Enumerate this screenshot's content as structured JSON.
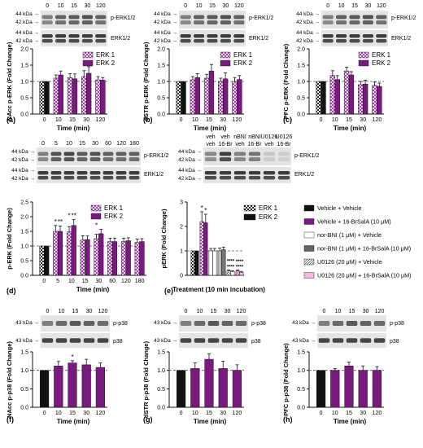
{
  "colors": {
    "erk1": "#f0d6f2",
    "erk2": "#7a1a7e",
    "black": "#111111",
    "blot_dark": "#2a2a2a",
    "blot_bg": "#e4e4e4",
    "dashed": "#555555"
  },
  "blot_labels": {
    "perk": "p-ERK1/2",
    "erk": "ERK1/2",
    "pp38": "p-p38",
    "p38": "p38",
    "kda44": "44 kDa",
    "kda42": "42 kDa",
    "kda43": "43 kDa"
  },
  "lane_labels": {
    "tc5": [
      "0",
      "10",
      "15",
      "30",
      "120"
    ],
    "tc8": [
      "0",
      "5",
      "10",
      "15",
      "30",
      "60",
      "120",
      "180"
    ],
    "trt_line1": [
      "veh",
      "veh",
      "nBNI",
      "nBNI",
      "U0126",
      "U0126"
    ],
    "trt_line2": [
      "veh",
      "16-Br",
      "veh",
      "16-Br",
      "veh",
      "16-Br"
    ]
  },
  "legend_erk": [
    "ERK 1",
    "ERK 2"
  ],
  "legend_e": [
    "Vehicle + Vehicle",
    "Vehicle + 16-BrSalA (10 μM)",
    "nor-BNI (1 μM) + Vehicle",
    "nor-BNI (1 μM) + 16-BrSalA (10 μM)",
    "U0126 (20 μM) + Vehicle",
    "U0126 (20 μM) + 16-BrSalA (10 μM)"
  ],
  "chart_data": [
    {
      "id": "a",
      "panel_label": "(a)",
      "type": "bar",
      "categories": [
        "0",
        "10",
        "15",
        "30",
        "120"
      ],
      "ylabel": "NAcc p-ERK (Fold Change)",
      "xlabel": "Time (min)",
      "ylim": [
        0,
        2.0
      ],
      "yticks": [
        "0.0",
        "0.5",
        "1.0",
        "1.5",
        "2.0"
      ],
      "series": [
        {
          "name": "ERK 1",
          "values": [
            1.0,
            1.1,
            1.12,
            1.15,
            1.05
          ],
          "errors": [
            0,
            0.1,
            0.12,
            0.18,
            0.1
          ]
        },
        {
          "name": "ERK 2",
          "values": [
            1.0,
            1.2,
            1.08,
            1.25,
            1.04
          ],
          "errors": [
            0,
            0.12,
            0.15,
            0.2,
            0.08
          ]
        }
      ]
    },
    {
      "id": "b",
      "panel_label": "(b)",
      "type": "bar",
      "categories": [
        "0",
        "10",
        "15",
        "30",
        "120"
      ],
      "ylabel": "dSTR p-ERK (Fold Change)",
      "xlabel": "Time (min)",
      "ylim": [
        0,
        2.0
      ],
      "yticks": [
        "0.0",
        "0.5",
        "1.0",
        "1.5",
        "2.0"
      ],
      "series": [
        {
          "name": "ERK 1",
          "values": [
            1.0,
            1.05,
            1.1,
            1.0,
            1.0
          ],
          "errors": [
            0,
            0.1,
            0.12,
            0.1,
            0.12
          ]
        },
        {
          "name": "ERK 2",
          "values": [
            1.0,
            1.12,
            1.32,
            1.08,
            1.06
          ],
          "errors": [
            0,
            0.12,
            0.2,
            0.18,
            0.12
          ]
        }
      ]
    },
    {
      "id": "c",
      "panel_label": "(c)",
      "type": "bar",
      "categories": [
        "0",
        "10",
        "15",
        "30",
        "120"
      ],
      "ylabel": "PFC p-ERK (Fold Change)",
      "xlabel": "Time (min)",
      "ylim": [
        0,
        2.0
      ],
      "yticks": [
        "0.0",
        "0.5",
        "1.0",
        "1.5",
        "2.0"
      ],
      "series": [
        {
          "name": "ERK 1",
          "values": [
            1.0,
            1.18,
            1.32,
            0.9,
            0.88
          ],
          "errors": [
            0,
            0.15,
            0.12,
            0.1,
            0.1
          ]
        },
        {
          "name": "ERK 2",
          "values": [
            1.0,
            1.06,
            1.2,
            0.92,
            0.85
          ],
          "errors": [
            0,
            0.12,
            0.1,
            0.12,
            0.1
          ]
        }
      ]
    },
    {
      "id": "d",
      "panel_label": "(d)",
      "type": "bar",
      "categories": [
        "0",
        "5",
        "10",
        "15",
        "30",
        "60",
        "120",
        "180"
      ],
      "ylabel": "p-ERK (Fold Change)",
      "xlabel": "Time (min)",
      "ylim": [
        0,
        2.5
      ],
      "yticks": [
        "0.0",
        "0.5",
        "1.0",
        "1.5",
        "2.0",
        "2.5"
      ],
      "series": [
        {
          "name": "ERK 1",
          "values": [
            1.0,
            1.5,
            1.48,
            1.2,
            1.25,
            1.15,
            1.15,
            1.12
          ],
          "errors": [
            0,
            0.2,
            0.18,
            0.15,
            0.15,
            0.12,
            0.12,
            0.12
          ]
        },
        {
          "name": "ERK 2",
          "values": [
            1.0,
            1.5,
            1.7,
            1.22,
            1.42,
            1.15,
            1.18,
            1.15
          ],
          "errors": [
            0,
            0.18,
            0.2,
            0.12,
            0.15,
            0.12,
            0.1,
            0.1
          ]
        }
      ],
      "annotations": [
        {
          "cat": 1,
          "text": "*"
        },
        {
          "cat": 1,
          "text": "**"
        },
        {
          "cat": 2,
          "text": "*"
        },
        {
          "cat": 2,
          "text": "**"
        },
        {
          "cat": 4,
          "text": "*"
        }
      ]
    },
    {
      "id": "e",
      "panel_label": "(e)",
      "type": "bar",
      "ylabel": "pERK (Fold Change)",
      "xlabel": "Treatment  (10 min incubation)",
      "ylim": [
        0,
        3.0
      ],
      "yticks": [
        "0",
        "1",
        "2",
        "3"
      ],
      "groups": [
        {
          "values": [
            1.0,
            1.0
          ]
        },
        {
          "values": [
            2.2,
            2.15
          ]
        },
        {
          "values": [
            1.0,
            1.0
          ]
        },
        {
          "values": [
            1.0,
            1.05
          ]
        },
        {
          "values": [
            0.18,
            0.15
          ]
        },
        {
          "values": [
            0.18,
            0.12
          ]
        }
      ],
      "errors": [
        [
          0,
          0
        ],
        [
          0.4,
          0.35
        ],
        [
          0.1,
          0.1
        ],
        [
          0.12,
          0.1
        ],
        [
          0.04,
          0.04
        ],
        [
          0.04,
          0.04
        ]
      ],
      "annotations": [
        "*",
        "*",
        "****",
        "****",
        "****",
        "****"
      ]
    },
    {
      "id": "f",
      "panel_label": "(f)",
      "type": "bar",
      "categories": [
        "0",
        "10",
        "15",
        "30",
        "120"
      ],
      "ylabel": "NAcc p-p38 (Fold Change)",
      "xlabel": "Time (min)",
      "ylim": [
        0,
        1.5
      ],
      "yticks": [
        "0.0",
        "0.5",
        "1.0",
        "1.5"
      ],
      "series": [
        {
          "name": "p-p38",
          "values": [
            1.0,
            1.12,
            1.2,
            1.15,
            1.08
          ],
          "errors": [
            0,
            0.12,
            0.06,
            0.15,
            0.12
          ]
        }
      ],
      "annotations": [
        {
          "cat": 2,
          "text": "*"
        }
      ]
    },
    {
      "id": "g",
      "panel_label": "(g)",
      "type": "bar",
      "categories": [
        "0",
        "10",
        "15",
        "30",
        "120"
      ],
      "ylabel": "dSTR p-p38 (Fold Change)",
      "xlabel": "Time (min)",
      "ylim": [
        0,
        1.5
      ],
      "yticks": [
        "0.0",
        "0.5",
        "1.0",
        "1.5"
      ],
      "series": [
        {
          "name": "p-p38",
          "values": [
            1.0,
            1.05,
            1.3,
            1.05,
            1.0
          ],
          "errors": [
            0,
            0.15,
            0.15,
            0.2,
            0.15
          ]
        }
      ]
    },
    {
      "id": "h",
      "panel_label": "(h)",
      "type": "bar",
      "categories": [
        "0",
        "10",
        "15",
        "30",
        "120"
      ],
      "ylabel": "PFC p-p38 (Fold Change)",
      "xlabel": "Time (min)",
      "ylim": [
        0,
        1.5
      ],
      "yticks": [
        "0.0",
        "0.5",
        "1.0",
        "1.5"
      ],
      "series": [
        {
          "name": "p-p38",
          "values": [
            1.0,
            1.0,
            1.12,
            1.0,
            1.0
          ],
          "errors": [
            0,
            0.05,
            0.1,
            0.12,
            0.1
          ]
        }
      ]
    }
  ]
}
